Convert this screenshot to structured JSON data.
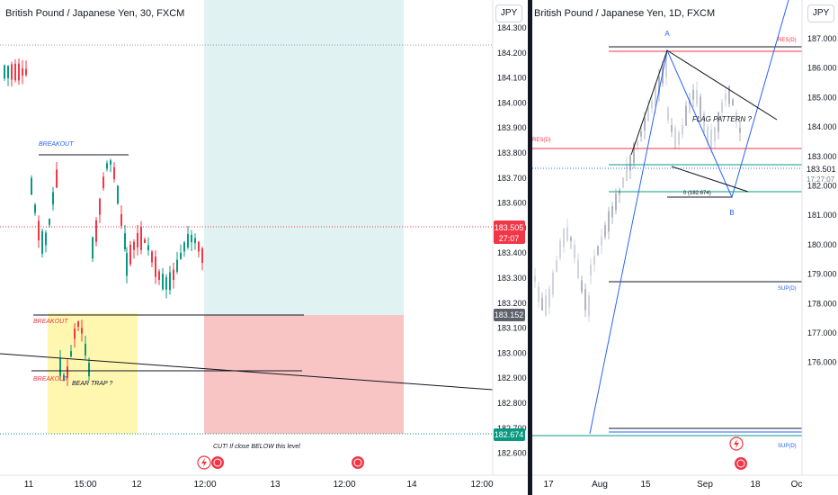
{
  "left_chart": {
    "title": "British Pound / Japanese Yen, 30, FXCM",
    "currency": "JPY",
    "price_ticks": [
      "184.300",
      "184.200",
      "184.100",
      "184.000",
      "183.900",
      "183.800",
      "183.700",
      "183.600",
      "183.500",
      "183.400",
      "183.300",
      "183.200",
      "183.100",
      "183.000",
      "182.900",
      "182.800",
      "182.700",
      "182.600"
    ],
    "time_ticks": [
      "11",
      "15:00",
      "12",
      "12:00",
      "13",
      "12:00",
      "14",
      "12:00"
    ],
    "current_price": "183.505",
    "countdown": "27:07",
    "level_label_gray": "183.152",
    "level_label_green": "182.674",
    "annotations": {
      "breakout_top": "BREAKOUT",
      "breakout_mid": "BREAKOUT",
      "breakout_bottom": "BREAKOUT",
      "bear_trap": "BEAR TRAP ?",
      "cut_note": "CUT! If close BELOW this level"
    },
    "colors": {
      "target_zone": "#e0f2f1",
      "stop_zone": "#f9c4c4",
      "trap_zone": "#fff7b0",
      "down": "#f23645",
      "up": "#089981"
    }
  },
  "right_chart": {
    "title": "British Pound / Japanese Yen, 1D, FXCM",
    "currency": "JPY",
    "price_ticks": [
      "187.000",
      "186.000",
      "185.000",
      "184.000",
      "183.000",
      "182.000",
      "181.000",
      "180.000",
      "179.000",
      "178.000",
      "177.000",
      "176.000"
    ],
    "time_ticks": [
      "17",
      "Aug",
      "15",
      "Sep",
      "18",
      "Oc"
    ],
    "current_price": "183.501",
    "countdown": "17:27:07",
    "annotations": {
      "point_a": "A",
      "point_b": "B",
      "flag": "FLAG PATTERN ?",
      "level_0": "0 (182.674)",
      "res_top": "RES(D)",
      "res_left": "RES(D)",
      "sup_mid": "SUP(D)",
      "sup_bottom": "SUP(D)"
    }
  }
}
